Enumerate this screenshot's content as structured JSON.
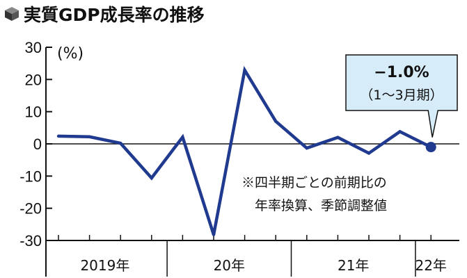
{
  "title": "実質GDP成長率の推移",
  "chart_data": {
    "type": "line",
    "unit": "%",
    "ylim": [
      -30,
      30
    ],
    "yticks": [
      30,
      20,
      10,
      0,
      -10,
      -20,
      -30
    ],
    "ytick_labels": [
      "30",
      "20",
      "10",
      "0",
      "-10",
      "-20",
      "-30"
    ],
    "x": [
      "2019Q1",
      "2019Q2",
      "2019Q3",
      "2019Q4",
      "2020Q1",
      "2020Q2",
      "2020Q3",
      "2020Q4",
      "2021Q1",
      "2021Q2",
      "2021Q3",
      "2021Q4",
      "2022Q1"
    ],
    "x_slots": [
      0,
      1,
      2,
      3,
      4,
      5,
      6,
      7,
      8,
      9,
      10,
      11,
      12
    ],
    "values": [
      2.4,
      2.2,
      0.2,
      -10.6,
      2.1,
      -28.2,
      22.9,
      7.0,
      -1.3,
      2.0,
      -2.9,
      3.8,
      -1.0
    ],
    "year_labels": [
      {
        "label": "2019年",
        "center_slot": 1.5
      },
      {
        "label": "20年",
        "center_slot": 5.5
      },
      {
        "label": "21年",
        "center_slot": 9.5
      },
      {
        "label": "22年",
        "center_slot": 12
      }
    ],
    "year_separators_slot": [
      3.5,
      7.5,
      11.5
    ],
    "annotation": {
      "value_text": "−1.0%",
      "period_text": "（1〜3月期）"
    },
    "note_lines": [
      "※四半期ごとの前期比の",
      "年率換算、季節調整値"
    ],
    "colors": {
      "line": "#1f3a8f",
      "axis": "#111111",
      "callout_fill": "#d6ecf8",
      "callout_stroke": "#111111"
    }
  }
}
